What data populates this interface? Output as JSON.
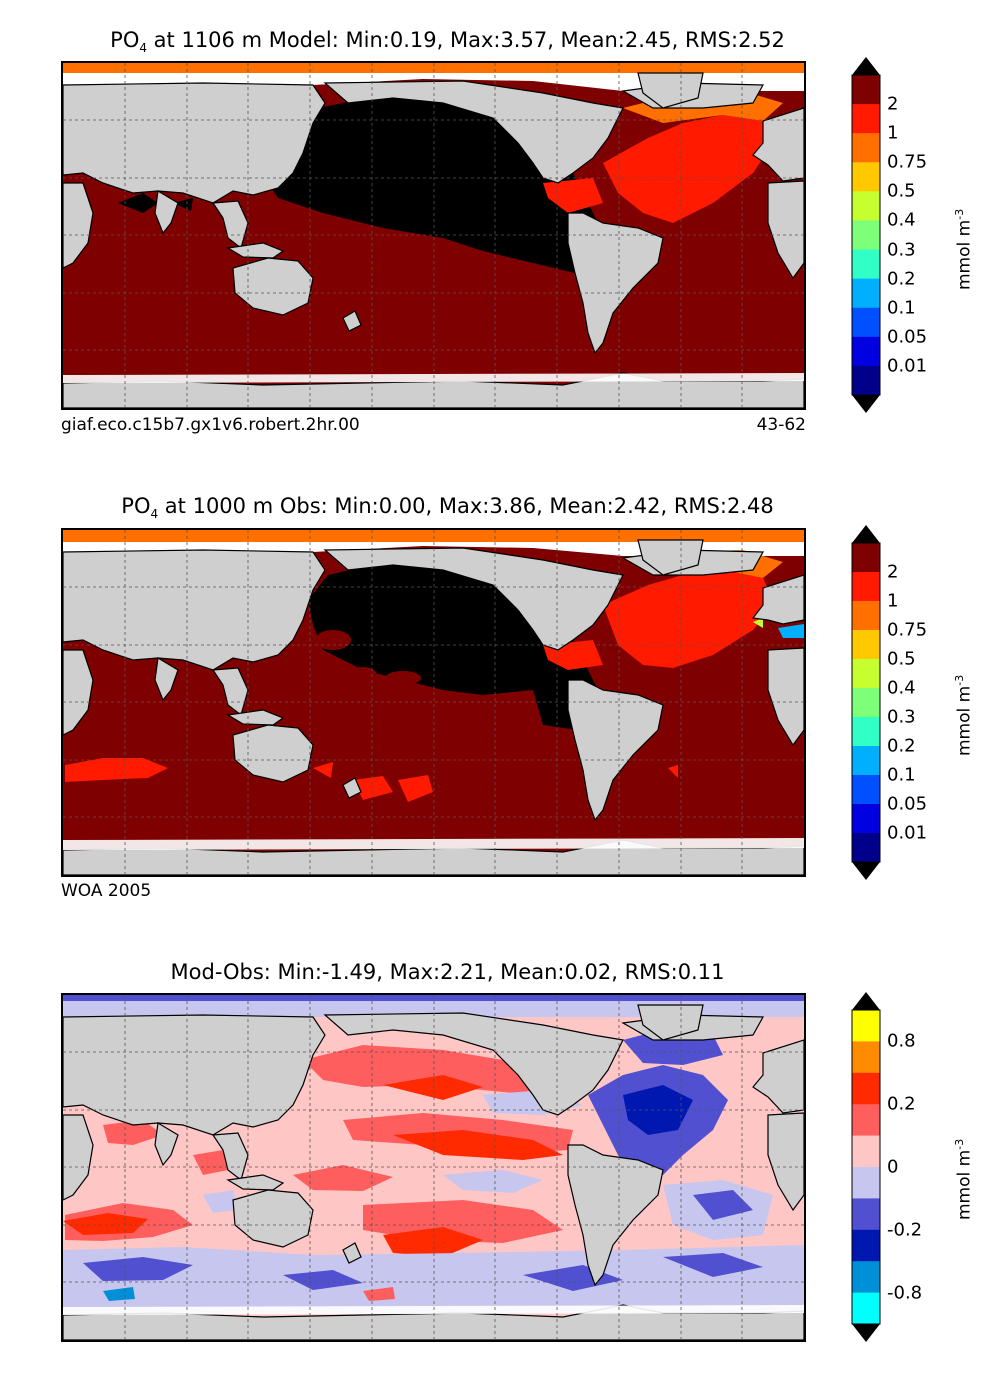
{
  "panels": [
    {
      "id": "model",
      "title_prefix": "PO",
      "title_sub": "4",
      "title_rest": " at 1106 m Model: Min:0.19, Max:3.57, Mean:2.45, RMS:2.52",
      "note_left": "giaf.eco.c15b7.gx1v6.robert.2hr.00",
      "note_right": "43-62",
      "colorbar": {
        "ticks": [
          "2",
          "1",
          "0.75",
          "0.5",
          "0.4",
          "0.3",
          "0.2",
          "0.1",
          "0.05",
          "0.01"
        ],
        "colors": [
          "#7f0000",
          "#ff1a00",
          "#ff7000",
          "#ffc800",
          "#c6ff30",
          "#7dff7a",
          "#30ffc6",
          "#00b0ff",
          "#0050ff",
          "#0000e0",
          "#00008a"
        ],
        "unit": "mmol m",
        "unit_sup": "-3"
      }
    },
    {
      "id": "obs",
      "title_prefix": "PO",
      "title_sub": "4",
      "title_rest": " at 1000 m Obs: Min:0.00, Max:3.86, Mean:2.42, RMS:2.48",
      "note_left": "WOA 2005",
      "note_right": "",
      "colorbar": {
        "ticks": [
          "2",
          "1",
          "0.75",
          "0.5",
          "0.4",
          "0.3",
          "0.2",
          "0.1",
          "0.05",
          "0.01"
        ],
        "colors": [
          "#7f0000",
          "#ff1a00",
          "#ff7000",
          "#ffc800",
          "#c6ff30",
          "#7dff7a",
          "#30ffc6",
          "#00b0ff",
          "#0050ff",
          "#0000e0",
          "#00008a"
        ],
        "unit": "mmol m",
        "unit_sup": "-3"
      }
    },
    {
      "id": "diff",
      "title_prefix": "Mod-Obs: Min:-1.49, Max:2.21, Mean:0.02, RMS:0.11",
      "title_sub": "",
      "title_rest": "",
      "note_left": "",
      "note_right": "",
      "colorbar": {
        "ticks": [
          "0.8",
          "0.2",
          "0",
          "-0.2",
          "-0.8"
        ],
        "colors": [
          "#ffff00",
          "#ff8c00",
          "#ff2a00",
          "#ff5e5e",
          "#ffc6c6",
          "#c6c6ee",
          "#5050d0",
          "#0018b0",
          "#0090d8",
          "#00ffff"
        ],
        "unit": "mmol m",
        "unit_sup": "-3"
      }
    }
  ],
  "colors": {
    "land": "#cfcfcf",
    "missing": "#ffffff",
    "coast": "#000000"
  }
}
